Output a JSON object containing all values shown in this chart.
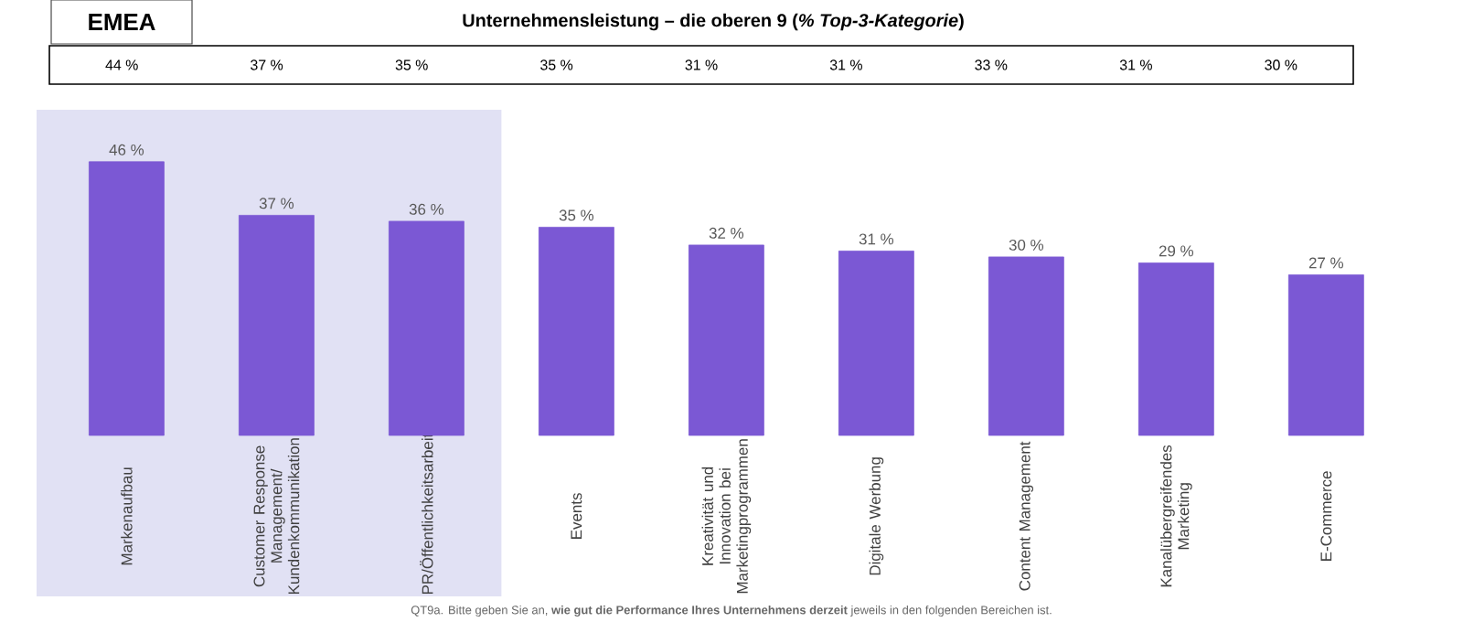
{
  "chart_data": {
    "type": "bar",
    "title": "Unternehmensleistung – die oberen 9 (*% Top-3-Kategorie*)",
    "subtitle": "EMEA",
    "categories": [
      "Markenaufbau",
      "Customer Response Management/ Kundenkommunikation",
      "PR/Öffentlichkeitsarbeit",
      "Events",
      "Kreativität und Innovation bei Marketingprogrammen",
      "Digitale Werbung",
      "Content Management",
      "Kanalübergreifendes Marketing",
      "E-Commerce"
    ],
    "values": [
      46,
      37,
      36,
      35,
      32,
      31,
      30,
      29,
      27
    ],
    "value_labels": [
      "46 %",
      "37 %",
      "36 %",
      "35 %",
      "32 %",
      "31 %",
      "30 %",
      "29 %",
      "27 %"
    ],
    "color": "#7b58d4",
    "bands": [
      {
        "axis": "x",
        "from": "Markenaufbau",
        "to": "PR/Öffentlichkeitsarbeit",
        "color": "#e1e1f4"
      }
    ],
    "annotations": [
      "44 %",
      "37 %",
      "35 %",
      "35 %",
      "31 %",
      "31 %",
      "33 %",
      "31 %",
      "30 %",
      "QT9a. Bitte geben Sie an, **wie gut die Performance Ihres Unternehmens derzeit** jeweils in den folgenden Bereichen ist."
    ]
  }
}
